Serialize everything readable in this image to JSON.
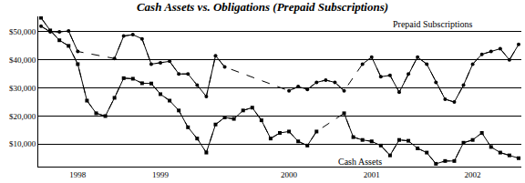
{
  "chart_data": {
    "type": "line",
    "title": "Cash Assets vs. Obligations (Prepaid Subscriptions)",
    "categories": [
      null,
      null,
      null,
      null,
      "1998",
      null,
      null,
      null,
      null,
      null,
      null,
      null,
      null,
      "1999",
      null,
      null,
      null,
      null,
      null,
      null,
      null,
      null,
      null,
      null,
      null,
      null,
      null,
      "2000",
      null,
      null,
      null,
      null,
      null,
      null,
      null,
      null,
      "2001",
      null,
      null,
      null,
      null,
      null,
      null,
      null,
      null,
      null,
      null,
      "2002",
      null,
      null,
      null,
      null,
      null
    ],
    "series": [
      {
        "name": "Prepaid Subscriptions",
        "color": "#000000",
        "marker": "circle",
        "line_style": "solid",
        "values": [
          52000,
          50000,
          50000,
          50300,
          43000,
          null,
          null,
          null,
          40500,
          48500,
          49000,
          47500,
          38500,
          39000,
          39500,
          35000,
          35000,
          31000,
          27000,
          41500,
          37500,
          null,
          null,
          null,
          null,
          null,
          null,
          29000,
          30500,
          29500,
          32000,
          32800,
          32000,
          29000,
          null,
          38500,
          41000,
          34000,
          34500,
          28500,
          35000,
          41000,
          38500,
          32000,
          26000,
          25000,
          31000,
          38500,
          42000,
          43000,
          44000,
          40000,
          45500
        ]
      },
      {
        "name": "Cash Assets",
        "color": "#000000",
        "marker": "square",
        "line_style": "solid",
        "values": [
          55000,
          50500,
          47000,
          45000,
          38500,
          25500,
          21000,
          20000,
          26500,
          33500,
          33300,
          31700,
          31600,
          27800,
          25500,
          22000,
          16000,
          12000,
          7000,
          17000,
          19500,
          19000,
          22000,
          23000,
          18500,
          12000,
          14000,
          14500,
          11000,
          9500,
          14500,
          null,
          null,
          21000,
          12500,
          11500,
          11000,
          9500,
          6000,
          11500,
          11200,
          8500,
          7000,
          3000,
          4000,
          4000,
          10500,
          11500,
          14000,
          9000,
          7000,
          6000,
          5000
        ]
      }
    ],
    "ylim": [
      2000,
      55500
    ],
    "yticks": [
      {
        "value": 10000,
        "label": "$10,000"
      },
      {
        "value": 20000,
        "label": "$20,000"
      },
      {
        "value": 30000,
        "label": "$30,000"
      },
      {
        "value": 40000,
        "label": "$40,000"
      },
      {
        "value": 50000,
        "label": "$50,000"
      }
    ],
    "grid": true
  }
}
